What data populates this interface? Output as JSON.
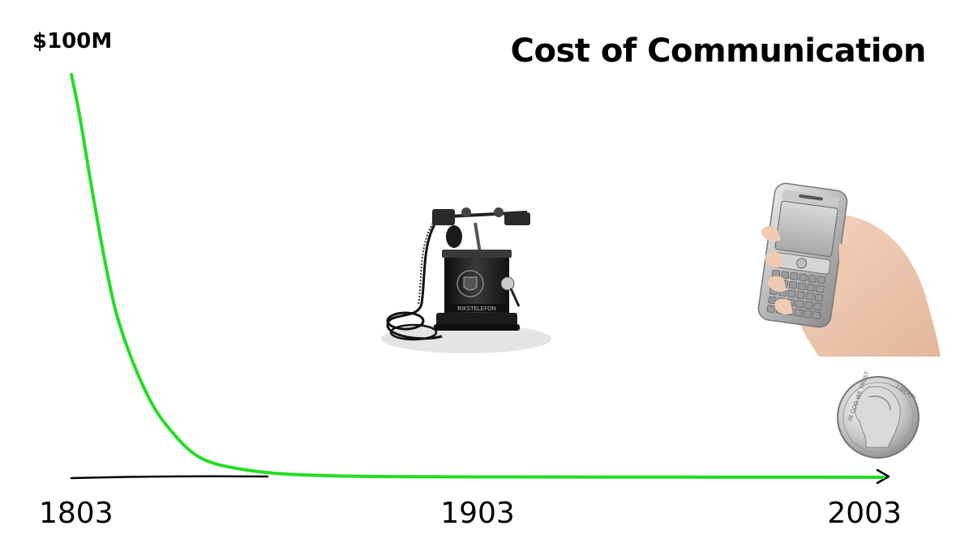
{
  "chart_data": {
    "type": "line",
    "title": "Cost of Communication",
    "ylabel": "",
    "xlabel": "",
    "y_max_label": "$100M",
    "x_tick_labels": [
      "1803",
      "1903",
      "2003"
    ],
    "x_ticks": [
      1803,
      1903,
      2003
    ],
    "xlim": [
      1803,
      2003
    ],
    "ylim": [
      0,
      100
    ],
    "y_unit": "$M",
    "grid": false,
    "series": [
      {
        "color": "#22dd22",
        "x": [
          1803,
          1805,
          1808,
          1811,
          1814,
          1818,
          1823,
          1828,
          1833,
          1838,
          1845,
          1853,
          1863,
          1878,
          1903,
          1953,
          2003
        ],
        "y": [
          100,
          90,
          72,
          55,
          41,
          29,
          18,
          11,
          6,
          3.5,
          2,
          1,
          0.5,
          0.2,
          0.1,
          0.05,
          0.01
        ]
      }
    ],
    "annotations": [
      {
        "kind": "illustration",
        "icon": "antique-telephone-icon",
        "x": 1903
      },
      {
        "kind": "illustration",
        "icon": "mobile-phone-icon",
        "x": 2003
      },
      {
        "kind": "illustration",
        "icon": "nickel-coin-icon",
        "x": 2003
      }
    ]
  }
}
